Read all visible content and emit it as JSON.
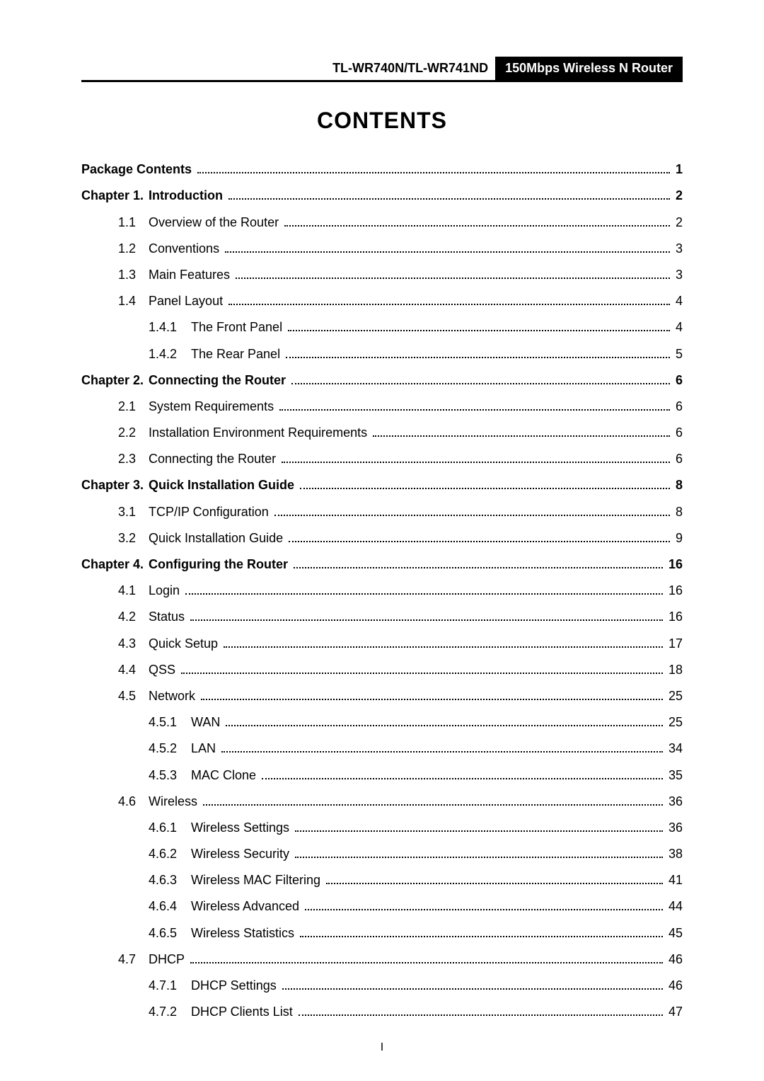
{
  "header": {
    "left": "TL-WR740N/TL-WR741ND",
    "right": "150Mbps Wireless N Router"
  },
  "title": "CONTENTS",
  "footer_page": "I",
  "toc": [
    {
      "level": 0,
      "num": "",
      "label": "Package Contents",
      "page": "1",
      "bold": true
    },
    {
      "level": 1,
      "num": "Chapter 1.",
      "label": "Introduction",
      "page": "2",
      "bold": true
    },
    {
      "level": 2,
      "num": "1.1",
      "label": "Overview of the Router",
      "page": "2",
      "bold": false
    },
    {
      "level": 2,
      "num": "1.2",
      "label": "Conventions",
      "page": "3",
      "bold": false
    },
    {
      "level": 2,
      "num": "1.3",
      "label": "Main Features",
      "page": "3",
      "bold": false
    },
    {
      "level": 2,
      "num": "1.4",
      "label": "Panel Layout",
      "page": "4",
      "bold": false
    },
    {
      "level": 3,
      "num": "1.4.1",
      "label": "The Front Panel",
      "page": "4",
      "bold": false
    },
    {
      "level": 3,
      "num": "1.4.2",
      "label": "The Rear Panel",
      "page": "5",
      "bold": false
    },
    {
      "level": 1,
      "num": "Chapter 2.",
      "label": "Connecting the Router",
      "page": "6",
      "bold": true
    },
    {
      "level": 2,
      "num": "2.1",
      "label": "System Requirements",
      "page": "6",
      "bold": false
    },
    {
      "level": 2,
      "num": "2.2",
      "label": "Installation Environment Requirements",
      "page": "6",
      "bold": false
    },
    {
      "level": 2,
      "num": "2.3",
      "label": "Connecting the Router",
      "page": "6",
      "bold": false
    },
    {
      "level": 1,
      "num": "Chapter 3.",
      "label": "Quick Installation Guide",
      "page": "8",
      "bold": true
    },
    {
      "level": 2,
      "num": "3.1",
      "label": "TCP/IP Configuration",
      "page": "8",
      "bold": false
    },
    {
      "level": 2,
      "num": "3.2",
      "label": "Quick Installation Guide",
      "page": "9",
      "bold": false
    },
    {
      "level": 1,
      "num": "Chapter 4.",
      "label": "Configuring the Router",
      "page": "16",
      "bold": true
    },
    {
      "level": 2,
      "num": "4.1",
      "label": "Login",
      "page": "16",
      "bold": false
    },
    {
      "level": 2,
      "num": "4.2",
      "label": "Status",
      "page": "16",
      "bold": false
    },
    {
      "level": 2,
      "num": "4.3",
      "label": "Quick Setup",
      "page": "17",
      "bold": false
    },
    {
      "level": 2,
      "num": "4.4",
      "label": "QSS",
      "page": "18",
      "bold": false
    },
    {
      "level": 2,
      "num": "4.5",
      "label": "Network",
      "page": "25",
      "bold": false
    },
    {
      "level": 3,
      "num": "4.5.1",
      "label": "WAN",
      "page": "25",
      "bold": false
    },
    {
      "level": 3,
      "num": "4.5.2",
      "label": "LAN",
      "page": "34",
      "bold": false
    },
    {
      "level": 3,
      "num": "4.5.3",
      "label": "MAC Clone",
      "page": "35",
      "bold": false
    },
    {
      "level": 2,
      "num": "4.6",
      "label": "Wireless",
      "page": "36",
      "bold": false
    },
    {
      "level": 3,
      "num": "4.6.1",
      "label": "Wireless Settings",
      "page": "36",
      "bold": false
    },
    {
      "level": 3,
      "num": "4.6.2",
      "label": "Wireless Security",
      "page": "38",
      "bold": false
    },
    {
      "level": 3,
      "num": "4.6.3",
      "label": "Wireless MAC Filtering",
      "page": "41",
      "bold": false
    },
    {
      "level": 3,
      "num": "4.6.4",
      "label": "Wireless Advanced",
      "page": "44",
      "bold": false
    },
    {
      "level": 3,
      "num": "4.6.5",
      "label": "Wireless Statistics",
      "page": "45",
      "bold": false
    },
    {
      "level": 2,
      "num": "4.7",
      "label": "DHCP",
      "page": "46",
      "bold": false
    },
    {
      "level": 3,
      "num": "4.7.1",
      "label": "DHCP Settings",
      "page": "46",
      "bold": false
    },
    {
      "level": 3,
      "num": "4.7.2",
      "label": "DHCP Clients List",
      "page": "47",
      "bold": false
    }
  ]
}
